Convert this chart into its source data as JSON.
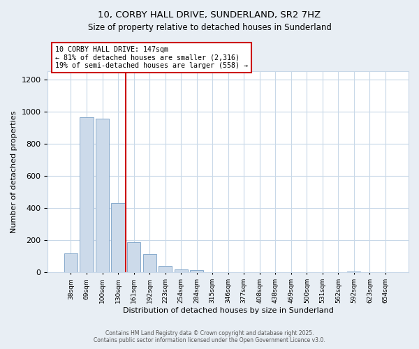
{
  "title": "10, CORBY HALL DRIVE, SUNDERLAND, SR2 7HZ",
  "subtitle": "Size of property relative to detached houses in Sunderland",
  "xlabel": "Distribution of detached houses by size in Sunderland",
  "ylabel": "Number of detached properties",
  "bar_labels": [
    "38sqm",
    "69sqm",
    "100sqm",
    "130sqm",
    "161sqm",
    "192sqm",
    "223sqm",
    "254sqm",
    "284sqm",
    "315sqm",
    "346sqm",
    "377sqm",
    "408sqm",
    "438sqm",
    "469sqm",
    "500sqm",
    "531sqm",
    "562sqm",
    "592sqm",
    "623sqm",
    "654sqm"
  ],
  "bar_values": [
    120,
    965,
    955,
    430,
    190,
    115,
    43,
    20,
    13,
    0,
    0,
    0,
    0,
    0,
    0,
    0,
    0,
    0,
    5,
    0,
    0
  ],
  "bar_color": "#ccdaea",
  "bar_edge_color": "#88aacc",
  "property_line_x": 3.5,
  "property_line_color": "#cc0000",
  "ylim": [
    0,
    1250
  ],
  "yticks": [
    0,
    200,
    400,
    600,
    800,
    1000,
    1200
  ],
  "annotation_title": "10 CORBY HALL DRIVE: 147sqm",
  "annotation_line1": "← 81% of detached houses are smaller (2,316)",
  "annotation_line2": "19% of semi-detached houses are larger (558) →",
  "annotation_box_color": "#cc0000",
  "footer1": "Contains HM Land Registry data © Crown copyright and database right 2025.",
  "footer2": "Contains public sector information licensed under the Open Government Licence v3.0.",
  "background_color": "#e8eef4",
  "plot_background_color": "#ffffff",
  "grid_color": "#c8d8e8"
}
